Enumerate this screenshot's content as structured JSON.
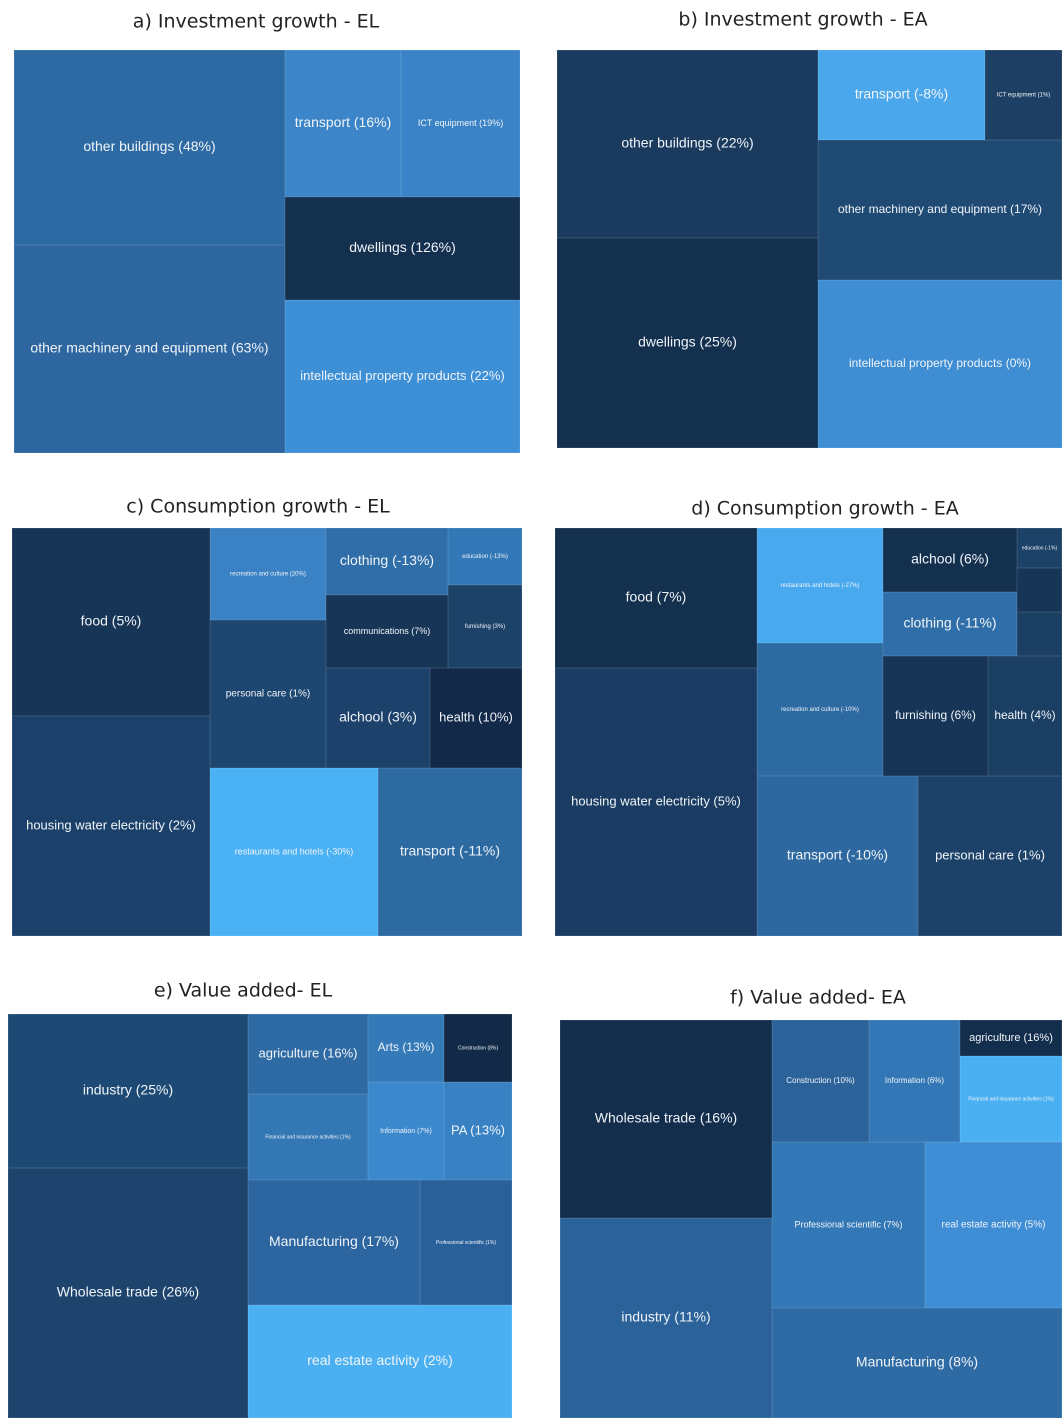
{
  "panels": [
    {
      "title": "a) Investment growth - EL",
      "cells": [
        "other buildings (48%)",
        "other machinery and equipment (63%)",
        "transport (16%)",
        "ICT equipment (19%)",
        "dwellings (126%)",
        "intellectual property products (22%)"
      ]
    },
    {
      "title": "b) Investment growth - EA",
      "cells": [
        "other buildings (22%)",
        "dwellings (25%)",
        "transport (-8%)",
        "ICT equipment (1%)",
        "other machinery and equipment (17%)",
        "intellectual property products (0%)"
      ]
    },
    {
      "title": "c) Consumption growth - EL",
      "cells": [
        "food (5%)",
        "housing water electricity (2%)",
        "recreation and culture (20%)",
        "personal care (1%)",
        "clothing (-13%)",
        "education (-13%)",
        "communications (7%)",
        "furnishing (3%)",
        "alchool (3%)",
        "health (10%)",
        "restaurants and hotels (-30%)",
        "transport (-11%)"
      ]
    },
    {
      "title": "d) Consumption growth - EA",
      "cells": [
        "food (7%)",
        "housing water electricity (5%)",
        "restaurants and hotels (-27%)",
        "recreation and culture (-10%)",
        "alchool (6%)",
        "education (-1%)",
        "clothing (-11%)",
        "furnishing (6%)",
        "health (4%)",
        "transport (-10%)",
        "personal care (1%)"
      ]
    },
    {
      "title": "e) Value added- EL",
      "cells": [
        "industry (25%)",
        "Wholesale trade  (26%)",
        "agriculture (16%)",
        "Arts (13%)",
        "Construction (8%)",
        "Financial and insurance activities (1%)",
        "Information (7%)",
        "PA (13%)",
        "Manufacturing (17%)",
        "Professional scientific (1%)",
        "real estate activity (2%)"
      ]
    },
    {
      "title": "f) Value added- EA",
      "cells": [
        "Wholesale trade (16%)",
        "industry (11%)",
        "Construction (10%)",
        "Information (6%)",
        "agriculture (16%)",
        "Financial and insurance activities (1%)",
        "Professional scientific (7%)",
        "real estate activity (5%)",
        "Manufacturing (8%)"
      ]
    }
  ]
}
